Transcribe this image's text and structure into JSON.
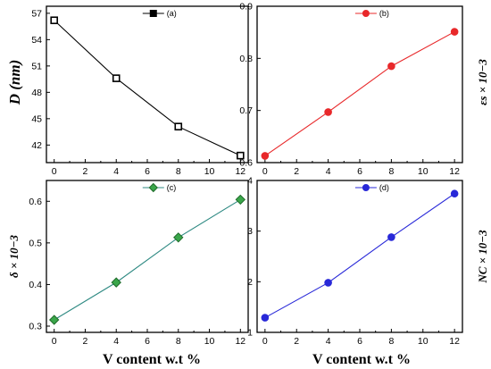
{
  "x_axis_label": "V  content w.t %",
  "panels": [
    {
      "id": "a",
      "legend": "(a)",
      "color": "#000000",
      "marker": "square",
      "marker_fill": "#ffffff",
      "ylabel": "D (nm)",
      "chart_data": {
        "type": "line",
        "x": [
          0,
          4,
          8,
          12
        ],
        "values": [
          56.2,
          49.6,
          44.1,
          40.8
        ],
        "xlim": [
          -0.5,
          12.5
        ],
        "ylim": [
          40,
          57.8
        ],
        "xticks": [
          "0",
          "2",
          "4",
          "6",
          "8",
          "10",
          "12"
        ],
        "yticks": [
          "42",
          "45",
          "48",
          "51",
          "54",
          "57"
        ]
      }
    },
    {
      "id": "b",
      "legend": "(b)",
      "color": "#e8282a",
      "marker": "circle",
      "marker_fill": "#e8282a",
      "ylabel": "εs × 10−3",
      "chart_data": {
        "type": "line",
        "x": [
          0,
          4,
          8,
          12
        ],
        "values": [
          0.613,
          0.697,
          0.785,
          0.851
        ],
        "xlim": [
          -0.5,
          12.5
        ],
        "ylim": [
          0.6,
          0.9
        ],
        "xticks": [
          "0",
          "2",
          "4",
          "6",
          "8",
          "10",
          "12"
        ],
        "yticks": [
          "0.6",
          "0.7",
          "0.8",
          "0.9"
        ]
      }
    },
    {
      "id": "c",
      "legend": "(c)",
      "color": "#2f8a83",
      "marker": "diamond",
      "marker_fill": "#3aa64a",
      "ylabel": "δ × 10−3",
      "chart_data": {
        "type": "line",
        "x": [
          0,
          4,
          8,
          12
        ],
        "values": [
          0.315,
          0.405,
          0.513,
          0.604
        ],
        "xlim": [
          -0.5,
          12.5
        ],
        "ylim": [
          0.285,
          0.65
        ],
        "xticks": [
          "0",
          "2",
          "4",
          "6",
          "8",
          "10",
          "12"
        ],
        "yticks": [
          "0.3",
          "0.4",
          "0.5",
          "0.6"
        ]
      }
    },
    {
      "id": "d",
      "legend": "(d)",
      "color": "#2828d8",
      "marker": "circle",
      "marker_fill": "#2828d8",
      "ylabel": "NC × 10−3",
      "chart_data": {
        "type": "line",
        "x": [
          0,
          4,
          8,
          12
        ],
        "values": [
          1.29,
          1.98,
          2.88,
          3.74
        ],
        "xlim": [
          -0.5,
          12.5
        ],
        "ylim": [
          1.0,
          4.0
        ],
        "xticks": [
          "0",
          "2",
          "4",
          "6",
          "8",
          "10",
          "12"
        ],
        "yticks": [
          "1",
          "2",
          "3",
          "4"
        ]
      }
    }
  ]
}
